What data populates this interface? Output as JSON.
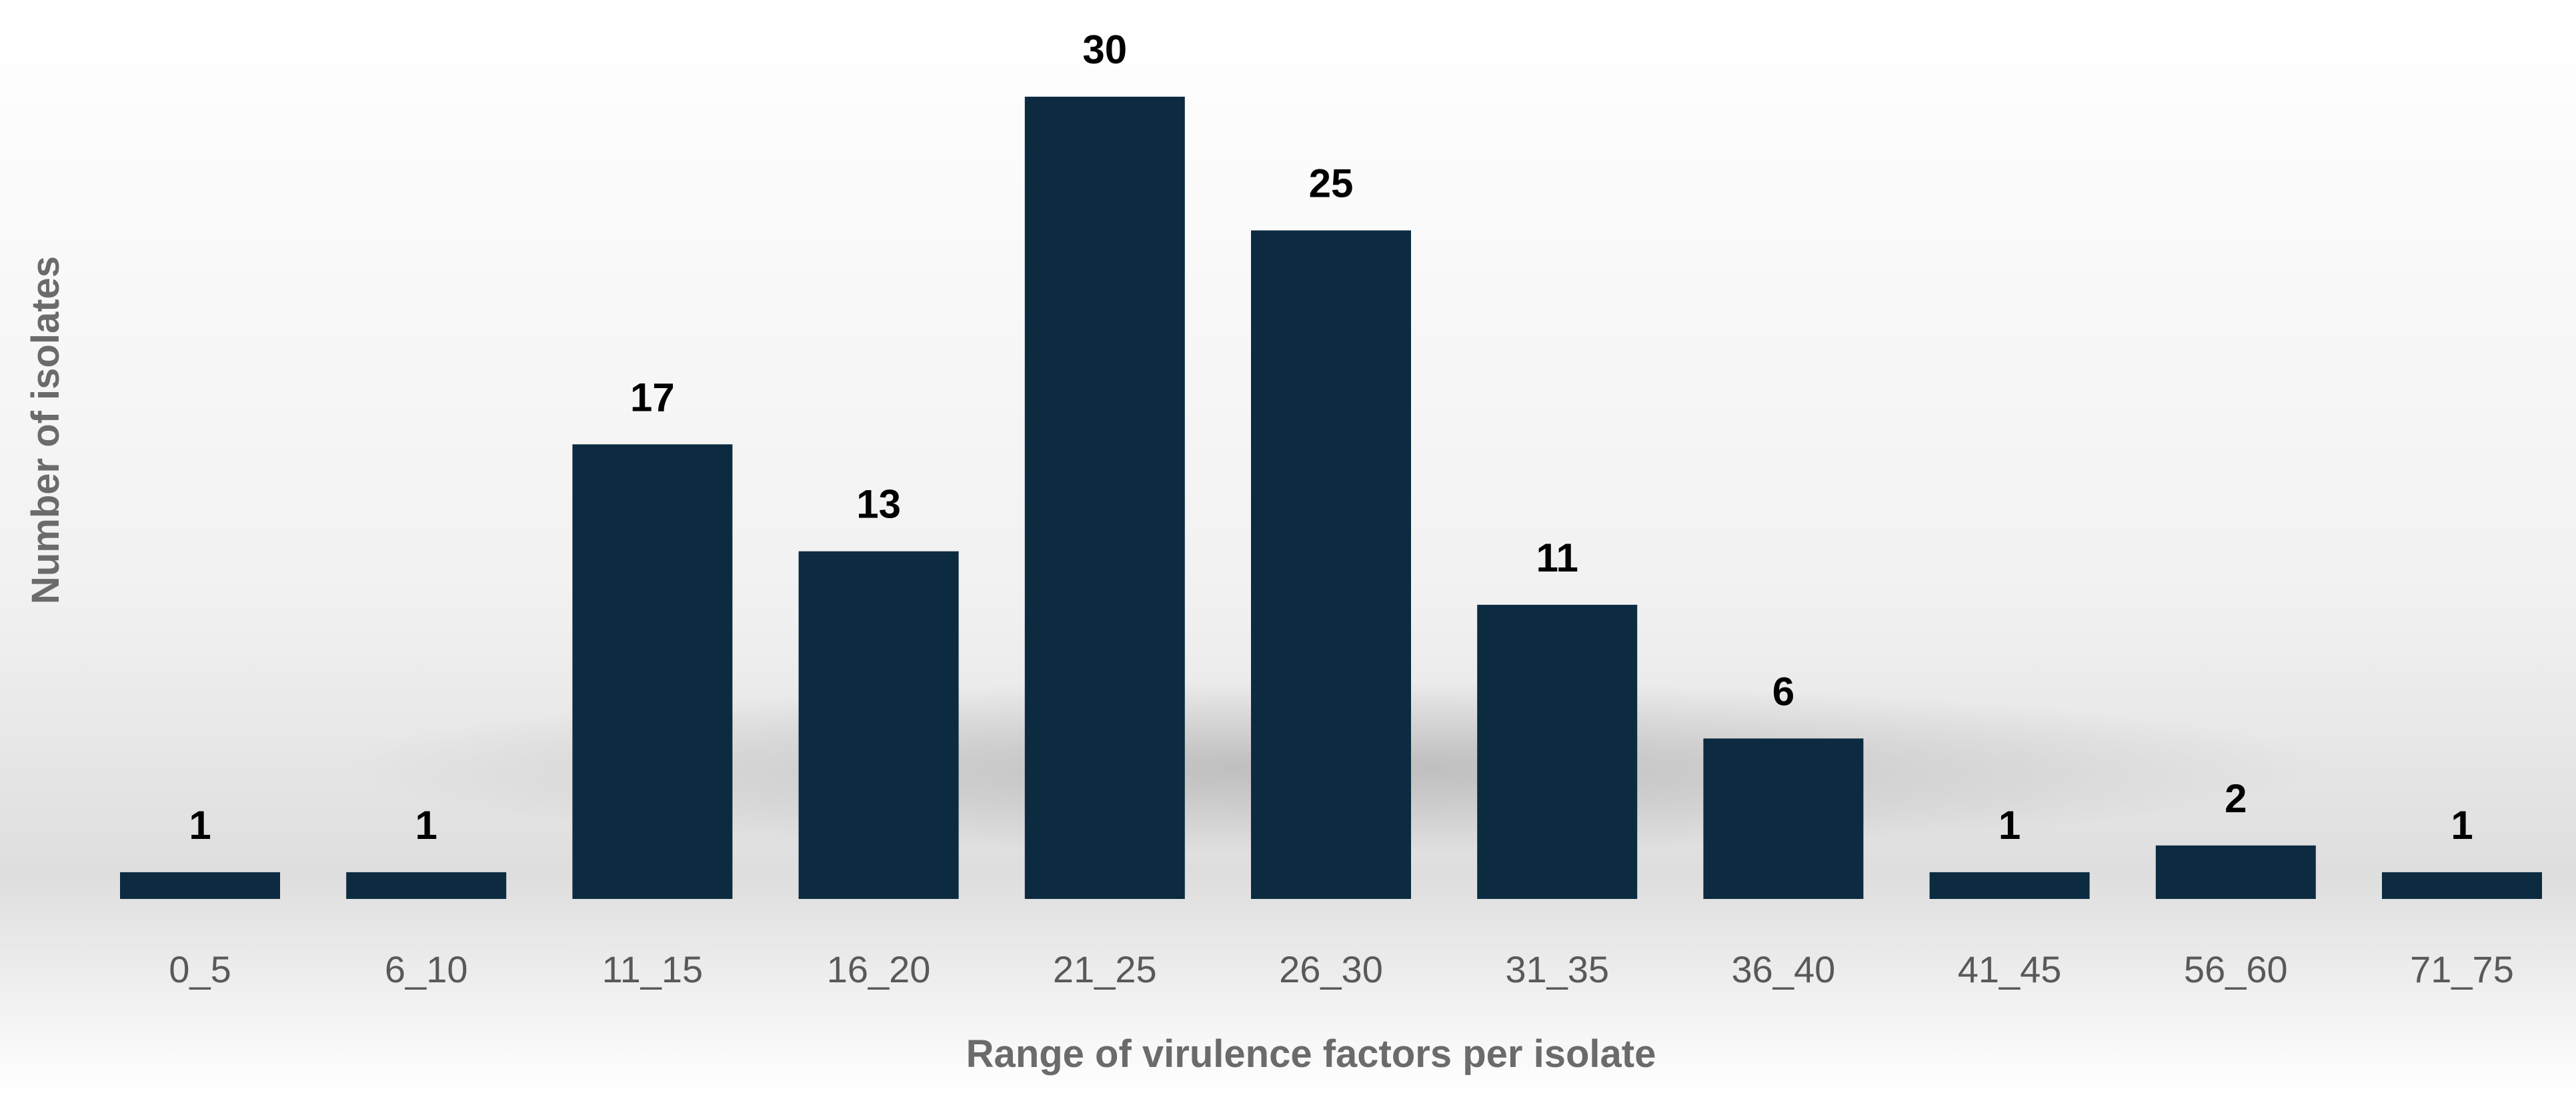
{
  "chart_data": {
    "type": "bar",
    "title": "",
    "xlabel": "Range of virulence factors per isolate",
    "ylabel": "Number of isolates",
    "categories": [
      "0_5",
      "6_10",
      "11_15",
      "16_20",
      "21_25",
      "26_30",
      "31_35",
      "36_40",
      "41_45",
      "56_60",
      "71_75"
    ],
    "values": [
      1,
      1,
      17,
      13,
      30,
      25,
      11,
      6,
      1,
      2,
      1
    ],
    "ylim": [
      0,
      30
    ],
    "grid": false,
    "legend": "none",
    "data_labels": true,
    "colors": {
      "bar": "#0c2b40",
      "data_label": "#000000",
      "tick_label": "#595959",
      "axis_title": "#6b6b6b",
      "background_top": "#ffffff",
      "background_mid": "#e3e3e3"
    }
  }
}
